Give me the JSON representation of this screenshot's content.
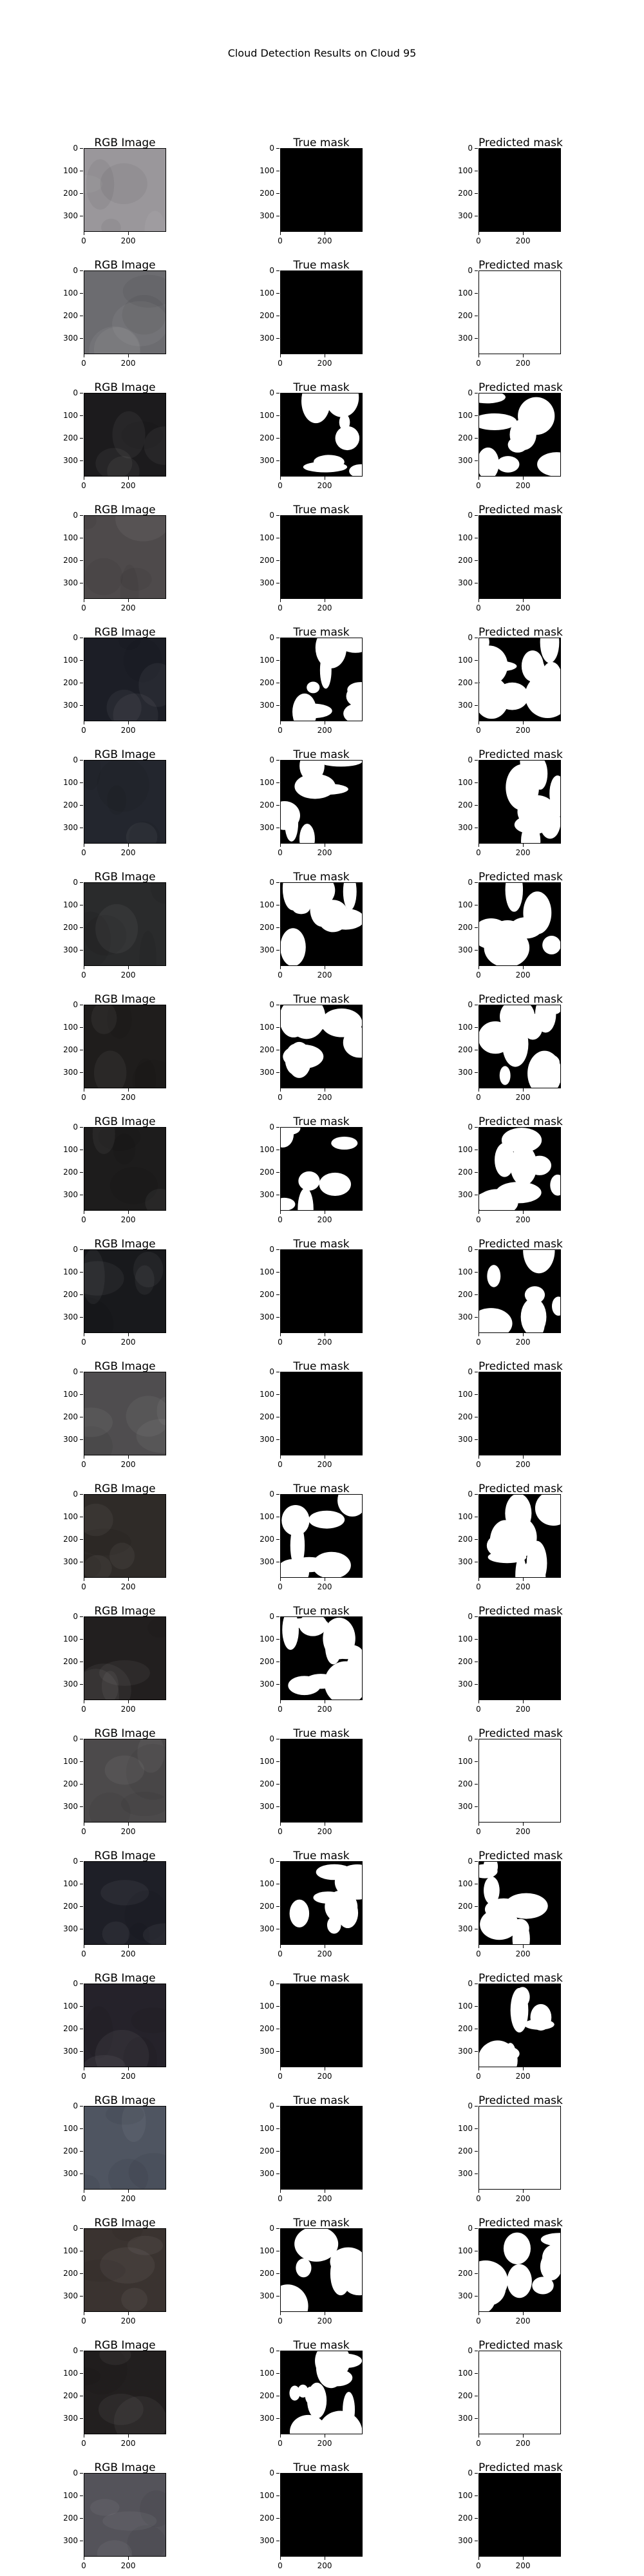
{
  "figure": {
    "title": "Cloud Detection Results on Cloud 95",
    "column_titles": [
      "RGB Image",
      "True mask",
      "Predicted mask"
    ],
    "y_ticks": [
      "0",
      "100",
      "200",
      "300"
    ],
    "x_ticks": [
      "0",
      "200"
    ]
  },
  "rows": [
    {
      "rgb": "#9a979b",
      "true_mask": "black",
      "pred_mask": "black"
    },
    {
      "rgb": "#6c6c70",
      "true_mask": "black",
      "pred_mask": "white"
    },
    {
      "rgb": "#1c1b1d",
      "true_mask": "mixed",
      "pred_mask": "mixed"
    },
    {
      "rgb": "#4e4a4b",
      "true_mask": "black",
      "pred_mask": "black"
    },
    {
      "rgb": "#1c1e26",
      "true_mask": "mixed",
      "pred_mask": "mixed"
    },
    {
      "rgb": "#23262e",
      "true_mask": "mixed",
      "pred_mask": "mixed"
    },
    {
      "rgb": "#2a2b2c",
      "true_mask": "mixed",
      "pred_mask": "mixed"
    },
    {
      "rgb": "#1f1d1c",
      "true_mask": "mixed",
      "pred_mask": "mixed"
    },
    {
      "rgb": "#1d1c1c",
      "true_mask": "mixed",
      "pred_mask": "mixed"
    },
    {
      "rgb": "#18191c",
      "true_mask": "black",
      "pred_mask": "mixed"
    },
    {
      "rgb": "#4f4d4f",
      "true_mask": "black",
      "pred_mask": "black"
    },
    {
      "rgb": "#2f2b28",
      "true_mask": "mixed",
      "pred_mask": "mixed"
    },
    {
      "rgb": "#221f1f",
      "true_mask": "mixed",
      "pred_mask": "black"
    },
    {
      "rgb": "#4c4a4b",
      "true_mask": "black",
      "pred_mask": "white"
    },
    {
      "rgb": "#1e1f27",
      "true_mask": "mixed",
      "pred_mask": "mixed"
    },
    {
      "rgb": "#25222a",
      "true_mask": "black",
      "pred_mask": "mixed"
    },
    {
      "rgb": "#4f5561",
      "true_mask": "black",
      "pred_mask": "white"
    },
    {
      "rgb": "#3a3330",
      "true_mask": "mixed",
      "pred_mask": "mixed"
    },
    {
      "rgb": "#221f1f",
      "true_mask": "mixed",
      "pred_mask": "white"
    },
    {
      "rgb": "#54535a",
      "true_mask": "black",
      "pred_mask": "black"
    }
  ]
}
